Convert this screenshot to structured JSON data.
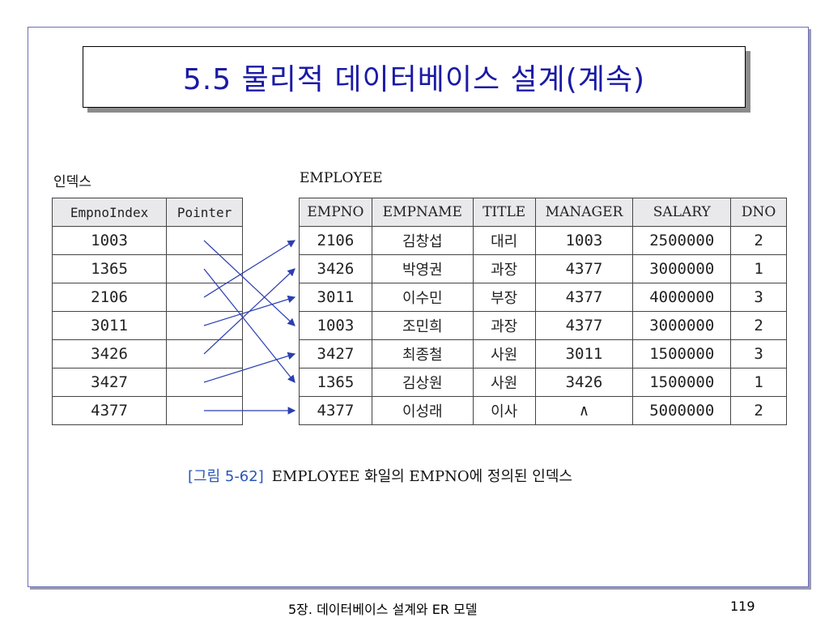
{
  "slide": {
    "title": "5.5 물리적 데이터베이스 설계(계속)",
    "index_label": "인덱스",
    "employee_label": "EMPLOYEE",
    "caption_figure": "[그림 5-62]",
    "caption_text": "EMPLOYEE 화일의 EMPNO에 정의된 인덱스",
    "footer_text": "5장. 데이터베이스 설계와 ER 모델",
    "page_number": "119"
  },
  "index_table": {
    "headers": [
      "EmpnoIndex",
      "Pointer"
    ],
    "rows": [
      "1003",
      "1365",
      "2106",
      "3011",
      "3426",
      "3427",
      "4377"
    ]
  },
  "employee_table": {
    "headers": [
      "EMPNO",
      "EMPNAME",
      "TITLE",
      "MANAGER",
      "SALARY",
      "DNO"
    ],
    "rows": [
      [
        "2106",
        "김창섭",
        "대리",
        "1003",
        "2500000",
        "2"
      ],
      [
        "3426",
        "박영권",
        "과장",
        "4377",
        "3000000",
        "1"
      ],
      [
        "3011",
        "이수민",
        "부장",
        "4377",
        "4000000",
        "3"
      ],
      [
        "1003",
        "조민희",
        "과장",
        "4377",
        "3000000",
        "2"
      ],
      [
        "3427",
        "최종철",
        "사원",
        "3011",
        "1500000",
        "3"
      ],
      [
        "1365",
        "김상원",
        "사원",
        "3426",
        "1500000",
        "1"
      ],
      [
        "4377",
        "이성래",
        "이사",
        "∧",
        "5000000",
        "2"
      ]
    ]
  },
  "pointer_map": [
    3,
    5,
    0,
    2,
    1,
    4,
    6
  ],
  "colors": {
    "title": "#1a1aa6",
    "arrow": "#2b3fb0",
    "caption_figure": "#2a55b8"
  }
}
